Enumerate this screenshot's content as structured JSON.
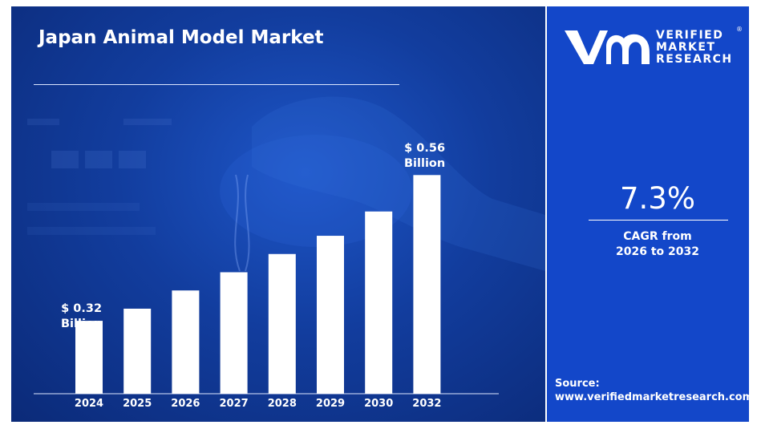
{
  "colors": {
    "left_bg": "#123d9e",
    "right_bg": "#1347c9",
    "bar": "#ffffff",
    "text": "#ffffff"
  },
  "header": {
    "title": "Japan Animal Model Market"
  },
  "brand": {
    "logo_icon": "vmr-logo-icon",
    "line1": "VERIFIED",
    "line2": "MARKET",
    "line3": "RESEARCH",
    "reg_mark": "®"
  },
  "cagr": {
    "value": "7.3%",
    "label_line1": "CAGR from",
    "label_line2": "2026 to 2032"
  },
  "source": {
    "label": "Source:",
    "url": "www.verifiedmarketresearch.com"
  },
  "chart_data": {
    "type": "bar",
    "title": "Japan Animal Model Market",
    "categories": [
      "2024",
      "2025",
      "2026",
      "2027",
      "2028",
      "2029",
      "2030",
      "2032"
    ],
    "values": [
      0.32,
      0.34,
      0.37,
      0.4,
      0.43,
      0.46,
      0.5,
      0.56
    ],
    "unit": "Billion",
    "ylim": [
      0.2,
      0.6
    ],
    "grid": false,
    "annotations": [
      {
        "category": "2024",
        "line1": "$ 0.32",
        "line2": "Billion"
      },
      {
        "category": "2032",
        "line1": "$ 0.56",
        "line2": "Billion"
      }
    ]
  }
}
